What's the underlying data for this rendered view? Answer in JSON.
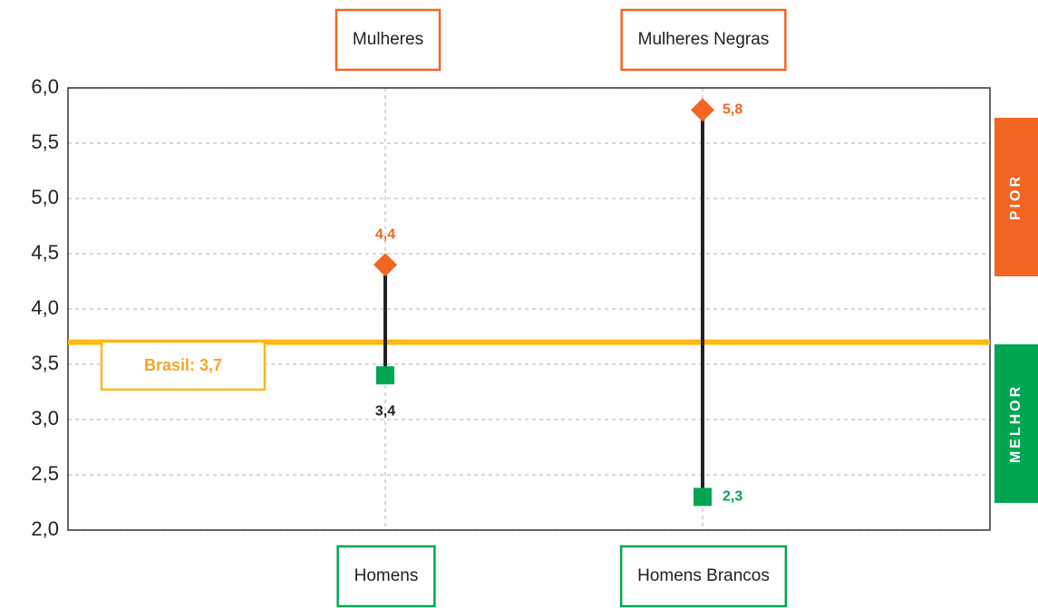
{
  "chart_data": {
    "type": "dumbbell",
    "ylim": [
      2,
      6
    ],
    "yticks": [
      {
        "value": 2,
        "label": "2,0"
      },
      {
        "value": 2.5,
        "label": "2,5"
      },
      {
        "value": 3,
        "label": "3,0"
      },
      {
        "value": 3.5,
        "label": "3,5"
      },
      {
        "value": 4,
        "label": "4,0"
      },
      {
        "value": 4.5,
        "label": "4,5"
      },
      {
        "value": 5,
        "label": "5,0"
      },
      {
        "value": 5.5,
        "label": "5,5"
      },
      {
        "value": 6,
        "label": "6,0"
      }
    ],
    "grid": true,
    "series": [
      {
        "color": "#f26522",
        "marker": "diamond",
        "categories": [
          "Mulheres",
          "Mulheres Negras"
        ],
        "values": [
          4.4,
          5.8
        ],
        "value_labels": [
          "4,4",
          "5,8"
        ]
      },
      {
        "color": "#00a651",
        "marker": "square",
        "categories": [
          "Homens",
          "Homens Brancos"
        ],
        "values": [
          3.4,
          2.3
        ],
        "value_labels": [
          "3,4",
          "2,3"
        ]
      }
    ],
    "reference_line": {
      "label": "Brasil: 3,7",
      "value": 3.7,
      "color": "#fdb913"
    },
    "bands": [
      {
        "label": "PIOR",
        "color": "#f26522"
      },
      {
        "label": "MELHOR",
        "color": "#00a651"
      }
    ]
  }
}
